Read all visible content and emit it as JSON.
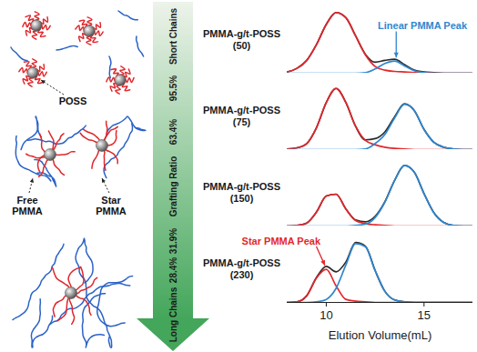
{
  "chart_data": [
    {
      "type": "line",
      "title": "PMMA-g/t-POSS (50)",
      "x": [
        8,
        8.5,
        9,
        9.5,
        10,
        10.5,
        11,
        11.5,
        12,
        12.5,
        13,
        13.5,
        14,
        14.5,
        15,
        15.5,
        16,
        16.5,
        17,
        17.5
      ],
      "series": [
        {
          "color": "#2a2a2a",
          "values": [
            0.02,
            0.08,
            0.21,
            0.47,
            0.8,
            0.99,
            0.91,
            0.61,
            0.31,
            0.18,
            0.21,
            0.23,
            0.14,
            0.05,
            0.02,
            0.01,
            0,
            0,
            0,
            0
          ]
        },
        {
          "color": "#e4262b",
          "values": [
            0.02,
            0.08,
            0.21,
            0.47,
            0.8,
            0.99,
            0.91,
            0.61,
            0.3,
            0.11,
            0.05,
            0.03,
            0.02,
            0.01,
            0.01,
            0,
            0,
            0,
            0,
            0
          ]
        },
        {
          "color": "#2f87d0",
          "values": [
            0,
            0,
            0,
            0,
            0,
            0,
            0,
            0,
            0.01,
            0.07,
            0.16,
            0.2,
            0.12,
            0.04,
            0.01,
            0,
            0,
            0,
            0,
            0
          ]
        }
      ],
      "xlim": [
        8,
        17.5
      ],
      "xticks": [
        10,
        15
      ],
      "ylim": [
        0,
        1.1
      ],
      "tick_labels": false,
      "annotations": [
        {
          "text": "Linear PMMA Peak",
          "x": 17.2,
          "y": 0.72,
          "target": [
            13.6,
            0.25
          ],
          "color": "#2f87d0"
        }
      ]
    },
    {
      "type": "line",
      "title": "PMMA-g/t-POSS (75)",
      "x": [
        8,
        8.5,
        9,
        9.5,
        10,
        10.5,
        11,
        11.5,
        12,
        12.5,
        13,
        13.5,
        14,
        14.5,
        15,
        15.5,
        16,
        16.5,
        17,
        17.5
      ],
      "series": [
        {
          "color": "#2a2a2a",
          "values": [
            0.01,
            0.03,
            0.1,
            0.36,
            0.77,
            1.0,
            0.77,
            0.38,
            0.16,
            0.18,
            0.29,
            0.54,
            0.75,
            0.64,
            0.33,
            0.12,
            0.04,
            0.01,
            0,
            0
          ]
        },
        {
          "color": "#e4262b",
          "values": [
            0.01,
            0.03,
            0.1,
            0.36,
            0.77,
            1.0,
            0.77,
            0.38,
            0.15,
            0.08,
            0.04,
            0.02,
            0.01,
            0,
            0,
            0,
            0,
            0,
            0,
            0
          ]
        },
        {
          "color": "#2f87d0",
          "values": [
            0,
            0,
            0,
            0,
            0,
            0,
            0,
            0,
            0.01,
            0.1,
            0.25,
            0.52,
            0.74,
            0.64,
            0.33,
            0.12,
            0.04,
            0.01,
            0,
            0
          ]
        }
      ],
      "xlim": [
        8,
        17.5
      ],
      "xticks": [
        10,
        15
      ],
      "ylim": [
        0,
        1.1
      ],
      "tick_labels": false
    },
    {
      "type": "line",
      "title": "PMMA-g/t-POSS (150)",
      "x": [
        8,
        8.5,
        9,
        9.5,
        10,
        10.5,
        11,
        11.5,
        12,
        12.5,
        13,
        13.5,
        14,
        14.5,
        15,
        15.5,
        16,
        16.5,
        17,
        17.5
      ],
      "series": [
        {
          "color": "#2a2a2a",
          "values": [
            0,
            0.01,
            0.05,
            0.23,
            0.49,
            0.52,
            0.28,
            0.1,
            0.07,
            0.16,
            0.4,
            0.75,
            0.99,
            0.88,
            0.53,
            0.22,
            0.06,
            0.01,
            0,
            0
          ]
        },
        {
          "color": "#e4262b",
          "values": [
            0,
            0.01,
            0.05,
            0.23,
            0.49,
            0.52,
            0.28,
            0.09,
            0.04,
            0.02,
            0.01,
            0,
            0,
            0,
            0,
            0,
            0,
            0,
            0,
            0
          ]
        },
        {
          "color": "#2f87d0",
          "values": [
            0,
            0,
            0,
            0,
            0,
            0,
            0,
            0.01,
            0.03,
            0.14,
            0.39,
            0.75,
            0.99,
            0.88,
            0.53,
            0.22,
            0.06,
            0.01,
            0,
            0
          ]
        }
      ],
      "xlim": [
        8,
        17.5
      ],
      "xticks": [
        10,
        15
      ],
      "ylim": [
        0,
        1.1
      ],
      "tick_labels": false
    },
    {
      "type": "line",
      "title": "PMMA-g/t-POSS (230)",
      "x": [
        8,
        8.5,
        9,
        9.5,
        10,
        10.5,
        11,
        11.5,
        12,
        12.5,
        13,
        13.5,
        14,
        14.5,
        15,
        15.5,
        16,
        16.5,
        17,
        17.5
      ],
      "series": [
        {
          "color": "#2a2a2a",
          "values": [
            0,
            0.01,
            0.11,
            0.41,
            0.59,
            0.5,
            0.66,
            0.98,
            0.92,
            0.52,
            0.18,
            0.04,
            0.01,
            0,
            0,
            0,
            0,
            0,
            0,
            0
          ]
        },
        {
          "color": "#e4262b",
          "values": [
            0,
            0.01,
            0.11,
            0.4,
            0.54,
            0.27,
            0.05,
            0.02,
            0.01,
            0,
            0,
            0,
            0,
            0,
            0,
            0,
            0,
            0,
            0,
            0
          ]
        },
        {
          "color": "#2f87d0",
          "values": [
            0,
            0,
            0,
            0.01,
            0.05,
            0.23,
            0.61,
            0.96,
            0.91,
            0.52,
            0.18,
            0.04,
            0.01,
            0,
            0,
            0,
            0,
            0,
            0,
            0
          ]
        }
      ],
      "xlim": [
        8,
        17.5
      ],
      "xticks": [
        10,
        15
      ],
      "ylim": [
        0,
        1.1
      ],
      "tick_labels": "x",
      "xlabel": "Elution Volume(mL)",
      "annotations": [
        {
          "text": "Star PMMA Peak",
          "x": 9.7,
          "y": 0.95,
          "target": [
            9.95,
            0.6
          ],
          "color": "#e4262b"
        }
      ]
    }
  ],
  "diagram": {
    "poss": "POSS",
    "free": "Free PMMA",
    "star": "Star PMMA",
    "arrow": {
      "top": "Short Chains",
      "middle": "Grafting Ratio",
      "bottom": "Long Chains",
      "grafting_ratios": [
        "95.5%",
        "63.4%",
        "31.9%",
        "28.4%"
      ]
    }
  }
}
